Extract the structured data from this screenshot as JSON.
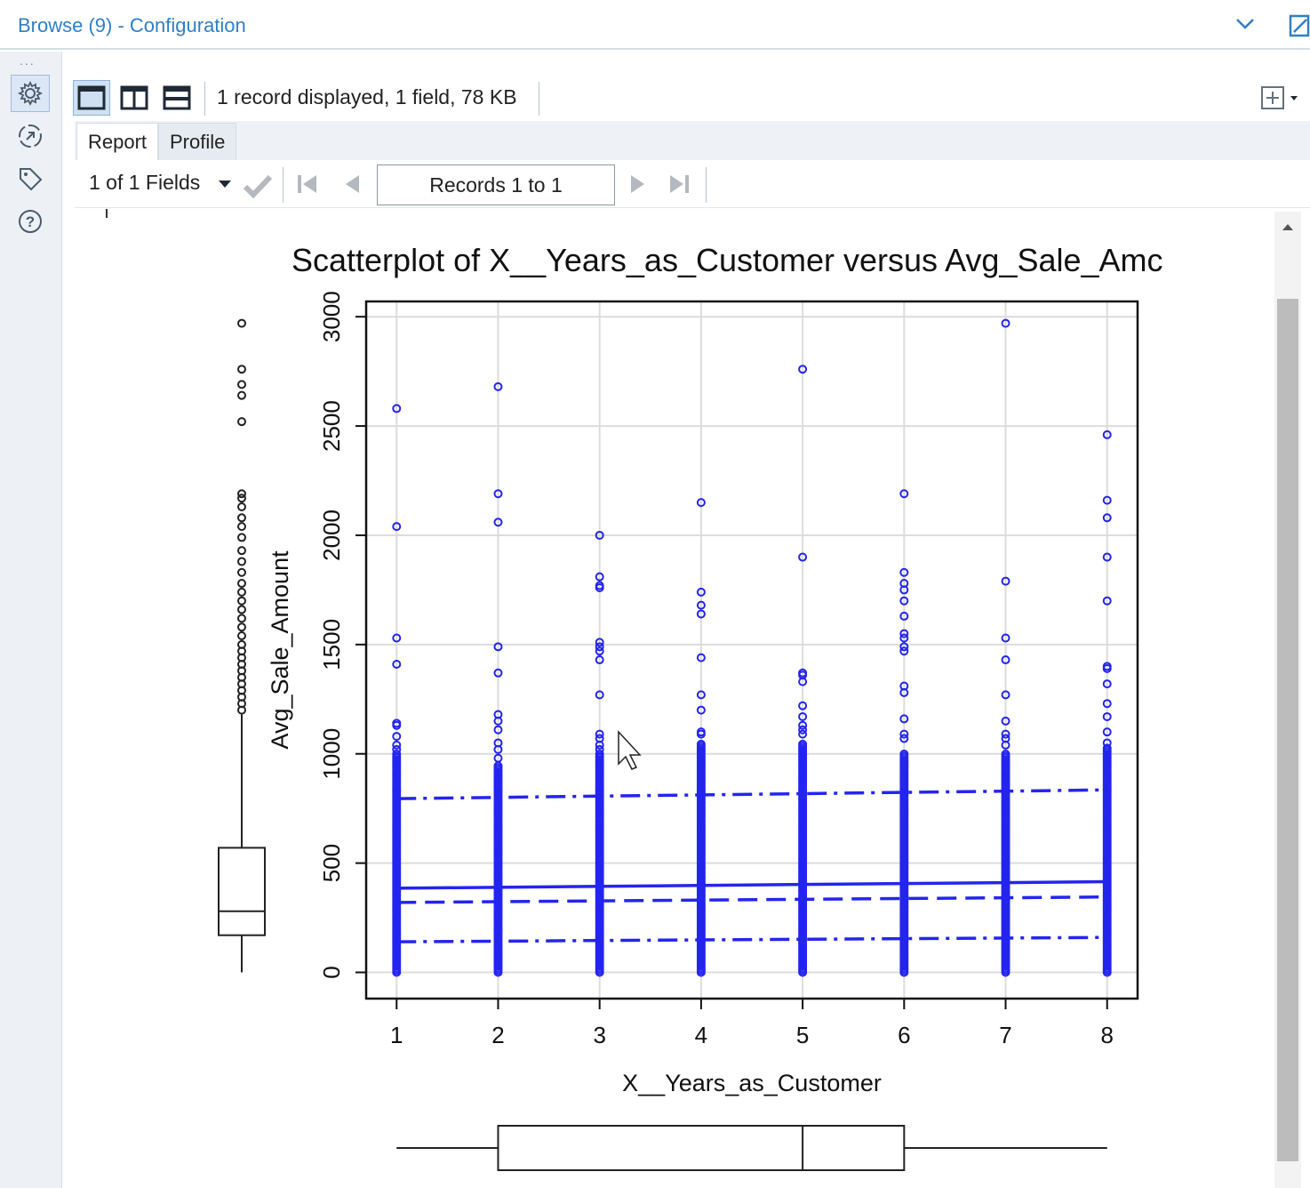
{
  "window": {
    "title": "Browse (9) - Configuration",
    "collapse_icon": "chevron-down-icon",
    "undock_icon": "undock-icon"
  },
  "left_rail": {
    "overflow": "...",
    "items": [
      {
        "icon": "gear-icon",
        "active": true
      },
      {
        "icon": "connection-icon",
        "active": false
      },
      {
        "icon": "tag-icon",
        "active": false
      },
      {
        "icon": "help-icon",
        "active": false
      }
    ]
  },
  "toolbar": {
    "layouts": [
      "single-pane-icon",
      "side-by-side-icon",
      "stacked-icon"
    ],
    "record_info": "1 record displayed, 1 field, 78 KB",
    "add_icon": "add-pane-icon"
  },
  "tabs": [
    {
      "label": "Report",
      "active": true
    },
    {
      "label": "Profile",
      "active": false
    }
  ],
  "nav": {
    "field_selector": "1 of 1 Fields",
    "records_label": "Records 1 to 1"
  },
  "chart_data": {
    "type": "scatter",
    "title": "Scatterplot of X__Years_as_Customer versus Avg_Sale_Amc",
    "xlabel": "X__Years_as_Customer",
    "ylabel": "Avg_Sale_Amount",
    "xlim": [
      0.7,
      8.3
    ],
    "ylim": [
      -120,
      3070
    ],
    "x_ticks": [
      1,
      2,
      3,
      4,
      5,
      6,
      7,
      8
    ],
    "y_ticks": [
      0,
      500,
      1000,
      1500,
      2000,
      2500,
      3000
    ],
    "grid": true,
    "point_color": "#2424f0",
    "dense_ranges": [
      {
        "x": 1,
        "from": 0,
        "to": 1000
      },
      {
        "x": 2,
        "from": 0,
        "to": 950
      },
      {
        "x": 3,
        "from": 0,
        "to": 1000
      },
      {
        "x": 4,
        "from": 0,
        "to": 1050
      },
      {
        "x": 5,
        "from": 0,
        "to": 1050
      },
      {
        "x": 6,
        "from": 0,
        "to": 1000
      },
      {
        "x": 7,
        "from": 0,
        "to": 1000
      },
      {
        "x": 8,
        "from": 0,
        "to": 1030
      }
    ],
    "outliers": [
      {
        "x": 1,
        "y": [
          2580,
          2040,
          1530,
          1410,
          1140,
          1130,
          1080,
          1040,
          1020
        ]
      },
      {
        "x": 2,
        "y": [
          2680,
          2190,
          2060,
          1490,
          1370,
          1180,
          1150,
          1110,
          1050,
          1020,
          980
        ]
      },
      {
        "x": 3,
        "y": [
          2000,
          1810,
          1770,
          1760,
          1510,
          1490,
          1470,
          1430,
          1270,
          1090,
          1070,
          1040,
          1020
        ]
      },
      {
        "x": 4,
        "y": [
          2150,
          1740,
          1680,
          1640,
          1440,
          1270,
          1200,
          1100,
          1090
        ]
      },
      {
        "x": 5,
        "y": [
          2760,
          1900,
          1370,
          1360,
          1330,
          1220,
          1170,
          1130,
          1110,
          1090
        ]
      },
      {
        "x": 6,
        "y": [
          2190,
          1830,
          1780,
          1750,
          1700,
          1630,
          1550,
          1530,
          1490,
          1470,
          1310,
          1280,
          1160,
          1090,
          1070
        ]
      },
      {
        "x": 7,
        "y": [
          2970,
          1790,
          1530,
          1430,
          1270,
          1150,
          1090,
          1070,
          1040
        ]
      },
      {
        "x": 8,
        "y": [
          2460,
          2160,
          2080,
          1900,
          1700,
          1400,
          1390,
          1320,
          1230,
          1170,
          1100,
          1050
        ]
      }
    ],
    "lines": [
      {
        "style": "solid",
        "y_at_x1": 385,
        "y_at_x8": 415
      },
      {
        "style": "dashed",
        "y_at_x1": 320,
        "y_at_x8": 345
      },
      {
        "style": "dash-dot",
        "y_at_x1": 795,
        "y_at_x8": 835
      },
      {
        "style": "dash-dot",
        "y_at_x1": 140,
        "y_at_x8": 160
      }
    ],
    "y_boxplot": {
      "whisker_low": 0,
      "q1": 170,
      "median": 280,
      "q3": 570,
      "whisker_high": 1180,
      "outliers": [
        1200,
        1230,
        1260,
        1290,
        1320,
        1350,
        1380,
        1410,
        1440,
        1470,
        1500,
        1540,
        1580,
        1620,
        1660,
        1700,
        1740,
        1780,
        1830,
        1880,
        1930,
        1990,
        2040,
        2080,
        2130,
        2170,
        2190,
        2520,
        2640,
        2690,
        2760,
        2970
      ]
    },
    "x_boxplot": {
      "whisker_low": 1,
      "q1": 2,
      "median": 5,
      "q3": 6,
      "whisker_high": 8
    }
  }
}
